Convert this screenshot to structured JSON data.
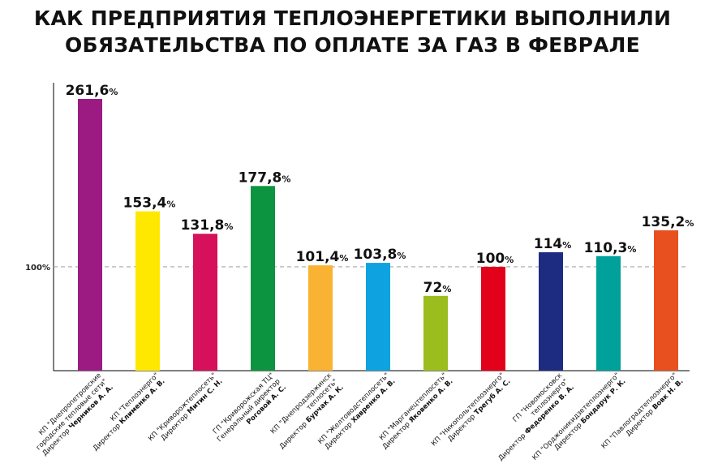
{
  "chart_data": {
    "type": "bar",
    "title_lines": [
      "КАК ПРЕДПРИЯТИЯ ТЕПЛОЭНЕРГЕТИКИ ВЫПОЛНИЛИ",
      "ОБЯЗАТЕЛЬСТВА ПО ОПЛАТЕ ЗА ГАЗ В ФЕВРАЛЕ"
    ],
    "reference_line": {
      "value": 100,
      "label": "100%"
    },
    "ylim": [
      0,
      290
    ],
    "grid": false,
    "unit": "%",
    "bars": [
      {
        "value": 261.6,
        "label": "261,6",
        "color": "#9b1b83",
        "name_lines": [
          "КП \"Днепропетровские",
          "городские тепловые сети\""
        ],
        "director_prefix": "Директор",
        "director_name": "Черников А. А."
      },
      {
        "value": 153.4,
        "label": "153,4",
        "color": "#ffe800",
        "name_lines": [
          "КП \"Теплоэнерго\""
        ],
        "director_prefix": "Директор",
        "director_name": "Клименко А. В."
      },
      {
        "value": 131.8,
        "label": "131,8",
        "color": "#d6105a",
        "name_lines": [
          "КП \"Криворожтеплосеть\""
        ],
        "director_prefix": "Директор",
        "director_name": "Митин С. Н."
      },
      {
        "value": 177.8,
        "label": "177,8",
        "color": "#0d9440",
        "name_lines": [
          "ГП \"Криворожская ТЦ\"",
          "Генеральный директор"
        ],
        "director_prefix": "",
        "director_name": "Роговой А. С."
      },
      {
        "value": 101.4,
        "label": "101,4",
        "color": "#f9b232",
        "name_lines": [
          "КП \"Днепродзержинск",
          "теплосеть\""
        ],
        "director_prefix": "Директор",
        "director_name": "Бурчак А. К."
      },
      {
        "value": 103.8,
        "label": "103,8",
        "color": "#0ea3e0",
        "name_lines": [
          "КП \"Желтоводстеплосеть\""
        ],
        "director_prefix": "Директор",
        "director_name": "Хавренко А. В."
      },
      {
        "value": 72,
        "label": "72",
        "color": "#9bbd1e",
        "name_lines": [
          "КП \"Марганецтеплосеть\""
        ],
        "director_prefix": "Директор",
        "director_name": "Яковенко А. В."
      },
      {
        "value": 100,
        "label": "100",
        "color": "#e3001b",
        "name_lines": [
          "КП \"Никопольтеплоэнерго\""
        ],
        "director_prefix": "Директор",
        "director_name": "Трегуб А. С."
      },
      {
        "value": 114,
        "label": "114",
        "color": "#1d2c80",
        "name_lines": [
          "ГП \"Новомосковск",
          "теплоэнерго\""
        ],
        "director_prefix": "Директор",
        "director_name": "Федоренко В. А."
      },
      {
        "value": 110.3,
        "label": "110,3",
        "color": "#00a19a",
        "name_lines": [
          "КП \"Орджоникидзетеплоэнерго\""
        ],
        "director_prefix": "Директор",
        "director_name": "Бондарук Р. К."
      },
      {
        "value": 135.2,
        "label": "135,2",
        "color": "#e8501f",
        "name_lines": [
          "КП \"Павлоградтеплоэнерго\""
        ],
        "director_prefix": "Директор",
        "director_name": "Вовк Н. В."
      }
    ]
  }
}
